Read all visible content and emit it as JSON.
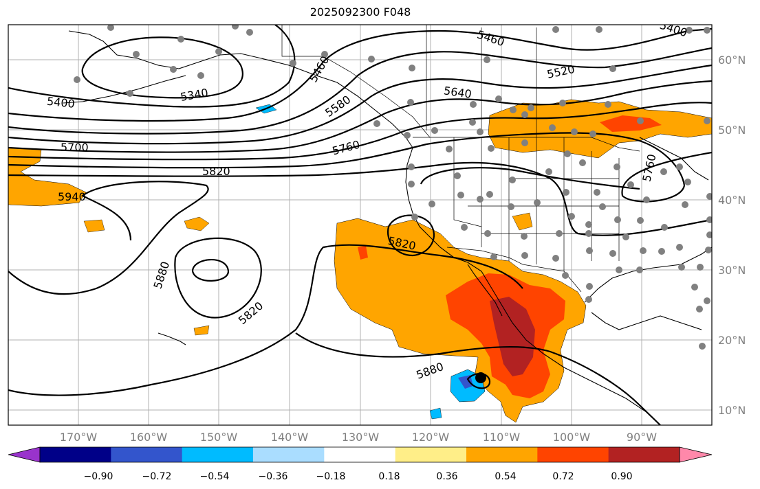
{
  "title": "2025092300 F048",
  "lat_labels": [
    "60°N",
    "50°N",
    "40°N",
    "30°N",
    "20°N",
    "10°N"
  ],
  "lon_labels": [
    "170°W",
    "160°W",
    "150°W",
    "140°W",
    "130°W",
    "120°W",
    "110°W",
    "100°W",
    "90°W"
  ],
  "contour_labels": [
    "5400",
    "5340",
    "5460",
    "5520",
    "5460",
    "5580",
    "5640",
    "5700",
    "5760",
    "5820",
    "5940",
    "5760",
    "5820",
    "5880",
    "5820",
    "5880",
    "5400"
  ],
  "colorbar": {
    "ticks": [
      "−0.90",
      "−0.72",
      "−0.54",
      "−0.36",
      "−0.18",
      "0.18",
      "0.36",
      "0.54",
      "0.72",
      "0.90"
    ],
    "colors": [
      "#9933cc",
      "#000088",
      "#3355cc",
      "#00bbff",
      "#aaddff",
      "#ffffff",
      "#ffee88",
      "#ffa500",
      "#ff4400",
      "#b22222",
      "#ff88aa"
    ]
  },
  "colors": {
    "orange": "#ffa500",
    "red": "#ff4400",
    "darkred": "#b22222",
    "yellow": "#ffee88",
    "cyan": "#00bbff",
    "blue": "#3355cc",
    "lightblue": "#aaddff",
    "station": "#808080"
  }
}
